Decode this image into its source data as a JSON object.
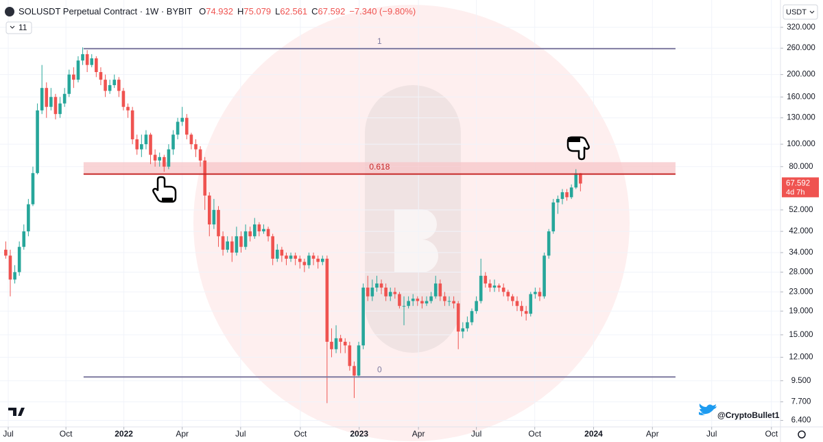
{
  "chart_data": {
    "type": "candlestick",
    "title": "SOLUSDT Perpetual Contract · 1W · BYBIT",
    "ohlc_labels": [
      "O",
      "H",
      "L",
      "C"
    ],
    "change": "−7.340 (−9.80%)",
    "indicator_count": 11,
    "currency": "USDT",
    "countdown": "4d 7h",
    "watermark": "@CryptoBullet1",
    "log_scale": true,
    "grid": true,
    "up_color": "#26a69a",
    "down_color": "#ef5350",
    "open": [
      35,
      33,
      26,
      28,
      36,
      42,
      55,
      75,
      140,
      175,
      145,
      160,
      135,
      150,
      165,
      200,
      190,
      230,
      245,
      220,
      235,
      205,
      190,
      170,
      180,
      190,
      170,
      145,
      140,
      105,
      95,
      100,
      110,
      90,
      85,
      88,
      80,
      95,
      110,
      125,
      130,
      110,
      100,
      95,
      85,
      60,
      45,
      52,
      40,
      35,
      38,
      34,
      40,
      36,
      42,
      40,
      45,
      42,
      43,
      40,
      32,
      35,
      33,
      32,
      33,
      32,
      31,
      30,
      33,
      32,
      31,
      32,
      14,
      13,
      14.5,
      14,
      13.5,
      11,
      10,
      13.5,
      24,
      22,
      24,
      25,
      24,
      22,
      23,
      22.5,
      20,
      20,
      21,
      21.5,
      21,
      20.5,
      21,
      22,
      25,
      22,
      21,
      21,
      20.5,
      15.5,
      16,
      17,
      19,
      21,
      27,
      25,
      24,
      24.5,
      24,
      23,
      22,
      21,
      20,
      19,
      18.5,
      22.5,
      23,
      22,
      33,
      42,
      56,
      58,
      62,
      59,
      65,
      74.932
    ],
    "high": [
      38,
      35,
      30,
      38,
      45,
      58,
      80,
      150,
      220,
      185,
      175,
      165,
      160,
      175,
      210,
      215,
      240,
      262,
      255,
      245,
      240,
      215,
      200,
      190,
      200,
      195,
      175,
      150,
      145,
      110,
      110,
      115,
      112,
      95,
      92,
      90,
      100,
      115,
      130,
      145,
      135,
      112,
      105,
      98,
      88,
      62,
      58,
      54,
      42,
      40,
      40,
      44,
      42,
      45,
      44,
      48,
      46,
      45,
      44,
      41,
      37,
      36,
      34,
      34,
      34,
      33,
      32,
      34,
      34,
      33,
      33,
      33,
      16,
      16.5,
      15,
      14.5,
      14,
      11.5,
      14,
      25,
      27,
      26,
      27,
      26,
      25,
      24,
      24,
      23,
      22,
      22,
      22.5,
      22,
      22,
      22,
      23,
      27,
      26,
      23,
      22,
      22,
      21,
      17,
      18,
      19.5,
      22,
      32,
      28,
      26,
      26,
      25,
      25,
      23.5,
      22.5,
      22,
      21,
      20,
      23,
      24,
      24,
      34,
      43,
      58,
      60,
      64,
      64,
      67,
      78,
      75.079
    ],
    "low": [
      32,
      22,
      25,
      27,
      35,
      40,
      54,
      74,
      135,
      130,
      140,
      128,
      130,
      145,
      160,
      175,
      185,
      220,
      205,
      215,
      195,
      180,
      160,
      165,
      175,
      160,
      140,
      130,
      100,
      90,
      88,
      95,
      82,
      80,
      80,
      76,
      78,
      90,
      105,
      120,
      105,
      95,
      88,
      80,
      52,
      40,
      43,
      36,
      33,
      34,
      31,
      33,
      34,
      35,
      38,
      39,
      40,
      41,
      38,
      30,
      31,
      31,
      30,
      31,
      30,
      29,
      28,
      29,
      30,
      29,
      30,
      7.6,
      12,
      12.5,
      12.5,
      12.5,
      10.5,
      8,
      9.8,
      13,
      21,
      21,
      23,
      22.5,
      21,
      21,
      21.5,
      19.5,
      16.5,
      19.5,
      20,
      20,
      19.5,
      20,
      20.5,
      21.5,
      21,
      20,
      20,
      19.5,
      13,
      14.5,
      15.5,
      16.5,
      18.5,
      20.5,
      24,
      23,
      23,
      23,
      22,
      21,
      20,
      19,
      18,
      17.3,
      18,
      21.5,
      21,
      21.5,
      32,
      41,
      50,
      55,
      57,
      58,
      64,
      62.561
    ],
    "close": [
      33,
      26,
      28,
      36,
      42,
      55,
      75,
      140,
      175,
      145,
      160,
      135,
      150,
      165,
      200,
      190,
      230,
      245,
      220,
      235,
      205,
      190,
      170,
      180,
      190,
      170,
      145,
      140,
      105,
      95,
      100,
      110,
      90,
      85,
      88,
      80,
      95,
      110,
      125,
      130,
      110,
      100,
      95,
      85,
      60,
      45,
      52,
      40,
      35,
      38,
      34,
      40,
      36,
      42,
      40,
      45,
      42,
      43,
      40,
      32,
      35,
      33,
      32,
      33,
      32,
      31,
      30,
      33,
      32,
      31,
      32,
      14,
      13,
      14.5,
      14,
      13.5,
      11,
      10,
      13.5,
      24,
      22,
      24,
      25,
      24,
      22,
      23,
      22.5,
      20,
      20,
      21,
      21.5,
      21,
      20.5,
      21,
      22,
      25,
      22,
      21,
      21,
      20.5,
      15.5,
      16,
      17,
      19,
      21,
      27,
      25,
      24,
      24.5,
      24,
      23,
      22,
      21,
      20,
      19,
      18.5,
      22.5,
      23,
      22,
      33,
      42,
      56,
      58,
      62,
      59,
      65,
      74.932,
      67.592
    ],
    "xlim": [
      -1.27,
      171.2
    ],
    "ylim": [
      6,
      420
    ],
    "xticks": [
      {
        "value": 0.55,
        "label": "Jul"
      },
      {
        "value": 13.3,
        "label": "Oct"
      },
      {
        "value": 26.1,
        "label": "2022"
      },
      {
        "value": 39.0,
        "label": "Apr"
      },
      {
        "value": 51.9,
        "label": "Jul"
      },
      {
        "value": 65.1,
        "label": "Oct"
      },
      {
        "value": 78.1,
        "label": "2023"
      },
      {
        "value": 91.2,
        "label": "Apr"
      },
      {
        "value": 104.0,
        "label": "Jul"
      },
      {
        "value": 116.9,
        "label": "Oct"
      },
      {
        "value": 129.9,
        "label": "2024"
      },
      {
        "value": 142.9,
        "label": "Apr"
      },
      {
        "value": 156.0,
        "label": "Jul"
      },
      {
        "value": 169.2,
        "label": "Oct"
      }
    ],
    "yticks": [
      {
        "value": 320,
        "label": "320.000"
      },
      {
        "value": 260,
        "label": "260.000"
      },
      {
        "value": 200,
        "label": "200.000"
      },
      {
        "value": 160,
        "label": "160.000"
      },
      {
        "value": 130,
        "label": "130.000"
      },
      {
        "value": 100,
        "label": "100.000"
      },
      {
        "value": 80,
        "label": "80.000"
      },
      {
        "value": 52,
        "label": "52.000"
      },
      {
        "value": 42,
        "label": "42.000"
      },
      {
        "value": 34,
        "label": "34.000"
      },
      {
        "value": 28,
        "label": "28.000"
      },
      {
        "value": 23,
        "label": "23.000"
      },
      {
        "value": 19,
        "label": "19.000"
      },
      {
        "value": 15,
        "label": "15.000"
      },
      {
        "value": 12,
        "label": "12.000"
      },
      {
        "value": 9.5,
        "label": "9.500"
      },
      {
        "value": 7.7,
        "label": "7.700"
      },
      {
        "value": 6.4,
        "label": "6.400"
      }
    ],
    "fib_levels": [
      {
        "label": "1",
        "value": 258.8,
        "color": "#7e7aa0"
      },
      {
        "label": "0.618",
        "value": 74.3,
        "color": "#c62828"
      },
      {
        "label": "0",
        "value": 9.86,
        "color": "#7e7aa0"
      }
    ],
    "fib_range": [
      17.2,
      148.0
    ],
    "zone": {
      "low": 74.3,
      "high": 83.6,
      "color": "#f7c6c8"
    }
  }
}
